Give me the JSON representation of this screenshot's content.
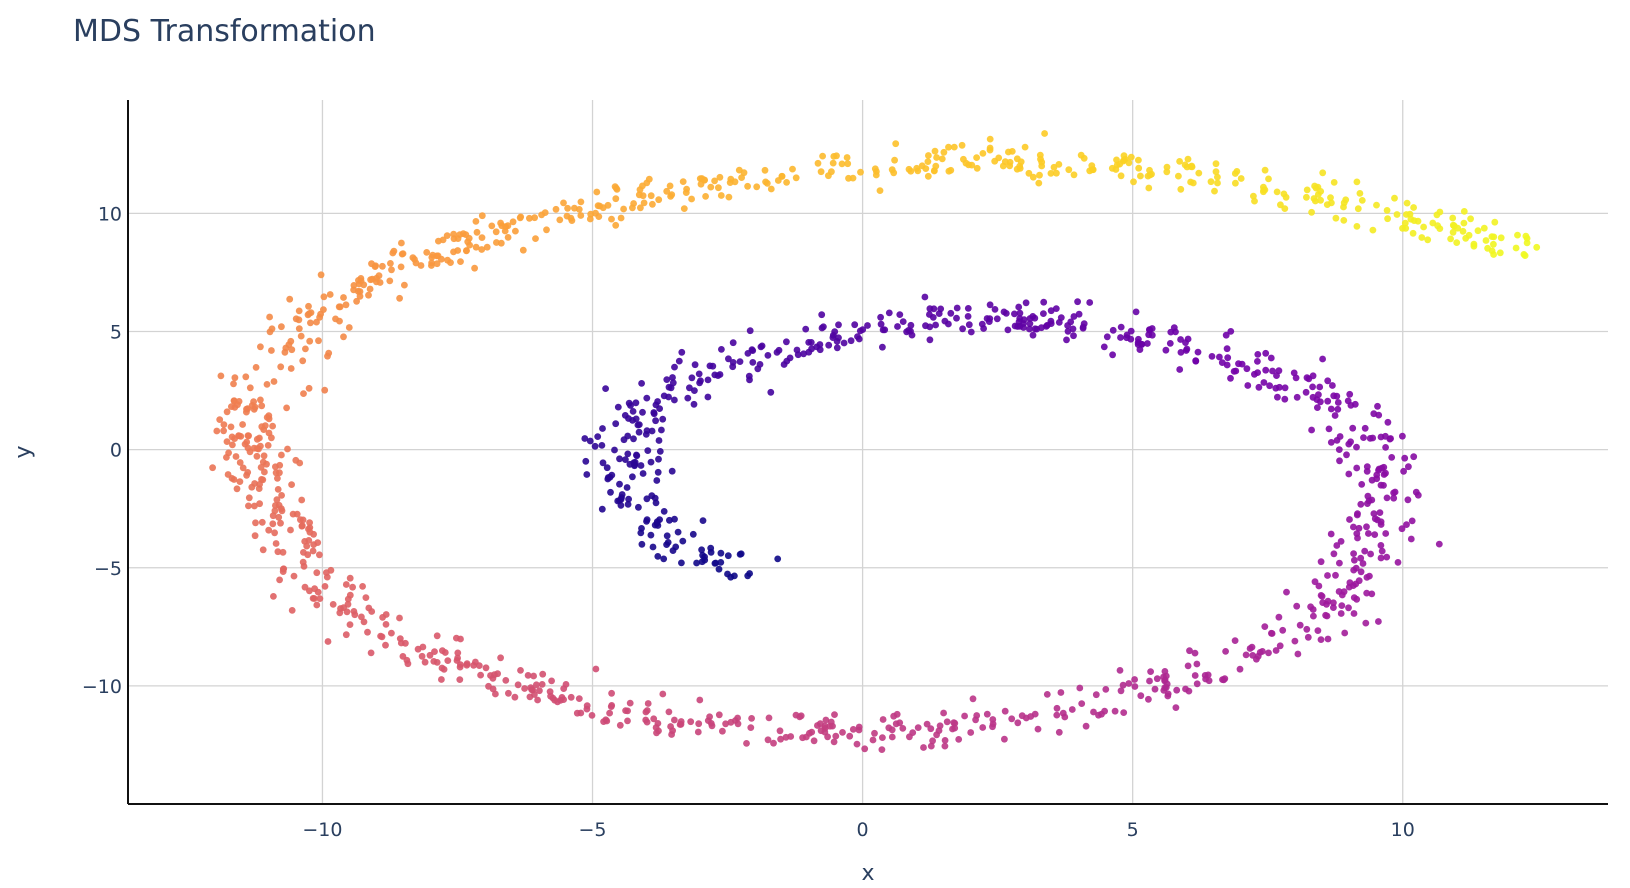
{
  "chart_data": {
    "type": "scatter",
    "title": "MDS Transformation",
    "xlabel": "x",
    "ylabel": "y",
    "xlim": [
      -13.6,
      13.8
    ],
    "ylim": [
      -15.0,
      14.8
    ],
    "xticks": [
      -10,
      -5,
      0,
      5,
      10
    ],
    "yticks": [
      -10,
      -5,
      0,
      5,
      10
    ],
    "xtick_labels": [
      "−10",
      "−5",
      "0",
      "5",
      "10"
    ],
    "ytick_labels": [
      "−10",
      "−5",
      "0",
      "5",
      "10"
    ],
    "grid": true,
    "colorscale": "plasma",
    "point_count_shown": "approx. 1500",
    "series": [
      {
        "shape": "spiral roll (points colored by position along the curve)",
        "curve_points": [
          [
            -2.2,
            -5.2
          ],
          [
            -3.0,
            -4.5
          ],
          [
            -3.8,
            -3.5
          ],
          [
            -4.3,
            -2.2
          ],
          [
            -4.5,
            -1.0
          ],
          [
            -4.4,
            0.5
          ],
          [
            -3.9,
            2.0
          ],
          [
            -3.0,
            3.1
          ],
          [
            -2.0,
            3.9
          ],
          [
            -1.0,
            4.5
          ],
          [
            0.0,
            5.0
          ],
          [
            1.0,
            5.4
          ],
          [
            2.0,
            5.6
          ],
          [
            3.0,
            5.5
          ],
          [
            4.0,
            5.3
          ],
          [
            5.0,
            4.9
          ],
          [
            6.0,
            4.4
          ],
          [
            7.0,
            3.7
          ],
          [
            8.0,
            2.8
          ],
          [
            8.8,
            1.8
          ],
          [
            9.3,
            0.8
          ],
          [
            9.6,
            -0.5
          ],
          [
            9.7,
            -2.0
          ],
          [
            9.6,
            -3.5
          ],
          [
            9.3,
            -5.0
          ],
          [
            8.7,
            -6.5
          ],
          [
            7.8,
            -7.9
          ],
          [
            6.8,
            -9.0
          ],
          [
            5.5,
            -10.0
          ],
          [
            4.0,
            -10.9
          ],
          [
            2.5,
            -11.5
          ],
          [
            1.0,
            -11.9
          ],
          [
            -0.5,
            -12.0
          ],
          [
            -2.0,
            -11.9
          ],
          [
            -3.5,
            -11.5
          ],
          [
            -5.0,
            -10.8
          ],
          [
            -6.5,
            -10.0
          ],
          [
            -8.0,
            -8.8
          ],
          [
            -9.2,
            -7.3
          ],
          [
            -10.1,
            -5.5
          ],
          [
            -10.8,
            -3.2
          ],
          [
            -11.2,
            -1.0
          ],
          [
            -11.3,
            1.2
          ],
          [
            -11.0,
            3.3
          ],
          [
            -10.2,
            5.5
          ],
          [
            -9.0,
            7.3
          ],
          [
            -7.5,
            8.7
          ],
          [
            -6.0,
            9.8
          ],
          [
            -4.0,
            10.8
          ],
          [
            -2.0,
            11.5
          ],
          [
            0.0,
            12.0
          ],
          [
            2.0,
            12.3
          ],
          [
            4.0,
            12.2
          ],
          [
            6.0,
            11.7
          ],
          [
            8.0,
            10.9
          ],
          [
            9.5,
            10.1
          ],
          [
            11.0,
            9.2
          ],
          [
            12.3,
            8.1
          ]
        ]
      }
    ]
  }
}
